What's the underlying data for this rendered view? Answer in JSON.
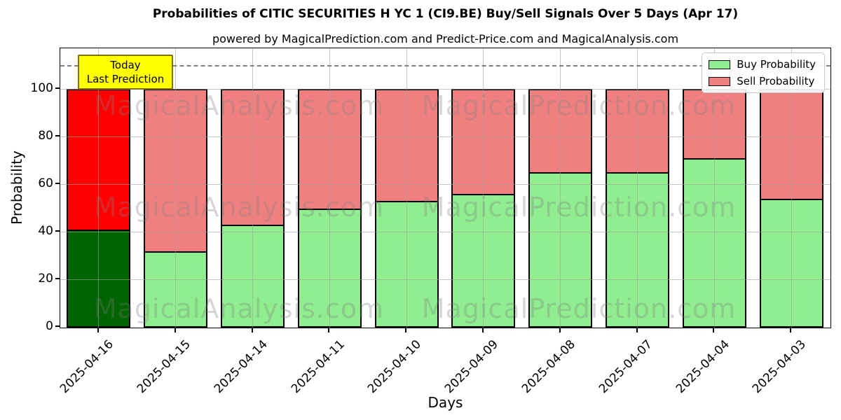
{
  "title": "Probabilities of CITIC SECURITIES H YC 1 (CI9.BE) Buy/Sell Signals Over 5 Days (Apr 17)",
  "subtitle": "powered by MagicalPrediction.com and Predict-Price.com and MagicalAnalysis.com",
  "watermarks": {
    "left_text": "MagicalAnalysis.com",
    "right_text": "MagicalPrediction.com"
  },
  "annotation": {
    "line1": "Today",
    "line2": "Last Prediction",
    "bg_color": "#ffff00"
  },
  "legend": [
    {
      "label": "Buy Probability",
      "color": "#90ee90"
    },
    {
      "label": "Sell Probability",
      "color": "#f08080"
    }
  ],
  "axes": {
    "ylabel": "Probability",
    "xlabel": "Days",
    "yticks": [
      0,
      20,
      40,
      60,
      80,
      100
    ],
    "ymax": 117,
    "dashed_guide_y": 110
  },
  "chart_data": {
    "type": "bar",
    "stacked": true,
    "title": "Probabilities of CITIC SECURITIES H YC 1 (CI9.BE) Buy/Sell Signals Over 5 Days (Apr 17)",
    "xlabel": "Days",
    "ylabel": "Probability",
    "ylim": [
      0,
      117
    ],
    "grid": true,
    "legend_position": "upper right",
    "categories": [
      "2025-04-16",
      "2025-04-15",
      "2025-04-14",
      "2025-04-11",
      "2025-04-10",
      "2025-04-09",
      "2025-04-08",
      "2025-04-07",
      "2025-04-04",
      "2025-04-03"
    ],
    "series": [
      {
        "name": "Buy Probability",
        "values": [
          41,
          32,
          43,
          50,
          53,
          56,
          65,
          65,
          71,
          54
        ],
        "color": "#90ee90",
        "highlight_color": "#006400"
      },
      {
        "name": "Sell Probability",
        "values": [
          59,
          68,
          57,
          50,
          47,
          44,
          35,
          35,
          29,
          46
        ],
        "color": "#f08080",
        "highlight_color": "#ff0000"
      }
    ],
    "highlight_index": 0,
    "bar_edge_color": "#000000",
    "annotations": [
      {
        "text": "Today\nLast Prediction",
        "target_category": "2025-04-16"
      }
    ]
  }
}
